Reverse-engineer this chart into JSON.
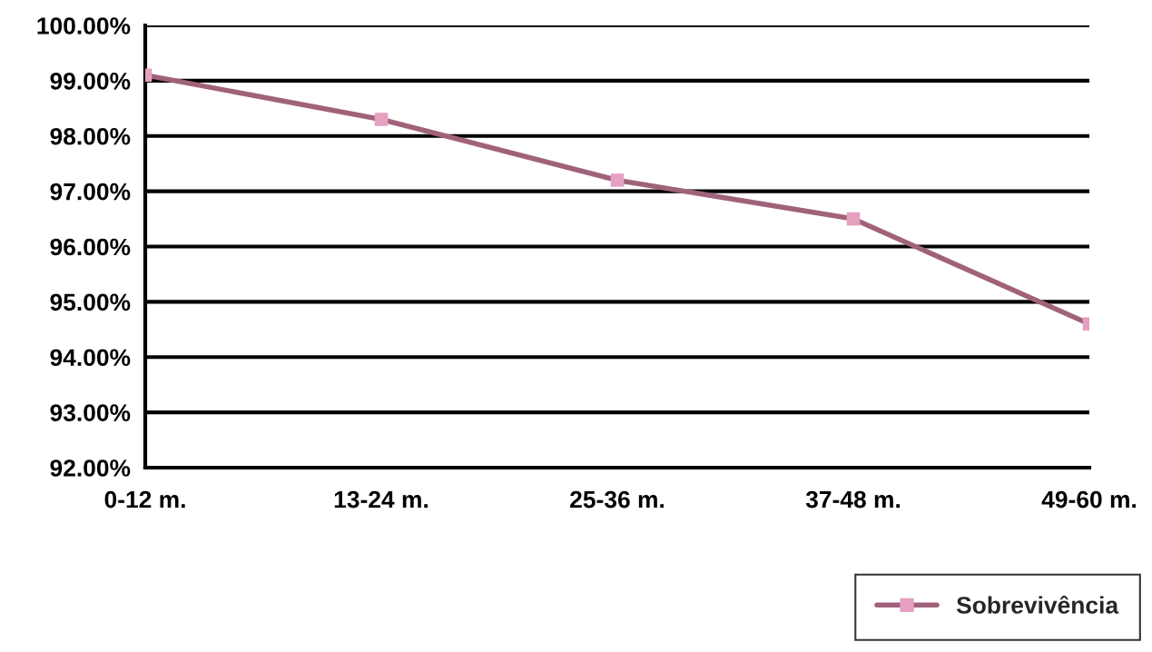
{
  "chart_data": {
    "type": "line",
    "categories": [
      "0-12 m.",
      "13-24 m.",
      "25-36 m.",
      "37-48 m.",
      "49-60 m."
    ],
    "series": [
      {
        "name": "Sobrevivência",
        "color": "#a0627a",
        "values": [
          99.1,
          98.3,
          97.2,
          96.5,
          94.6
        ]
      }
    ],
    "ylim": [
      92,
      100
    ],
    "yticks": [
      {
        "value": 92,
        "label": "92.00%"
      },
      {
        "value": 93,
        "label": "93.00%"
      },
      {
        "value": 94,
        "label": "94.00%"
      },
      {
        "value": 95,
        "label": "95.00%"
      },
      {
        "value": 96,
        "label": "96.00%"
      },
      {
        "value": 97,
        "label": "97.00%"
      },
      {
        "value": 98,
        "label": "98.00%"
      },
      {
        "value": 99,
        "label": "99.00%"
      },
      {
        "value": 100,
        "label": "100.00%"
      }
    ],
    "grid": "y",
    "legend": "bottom right",
    "marker": "square",
    "line_style": "solid"
  }
}
